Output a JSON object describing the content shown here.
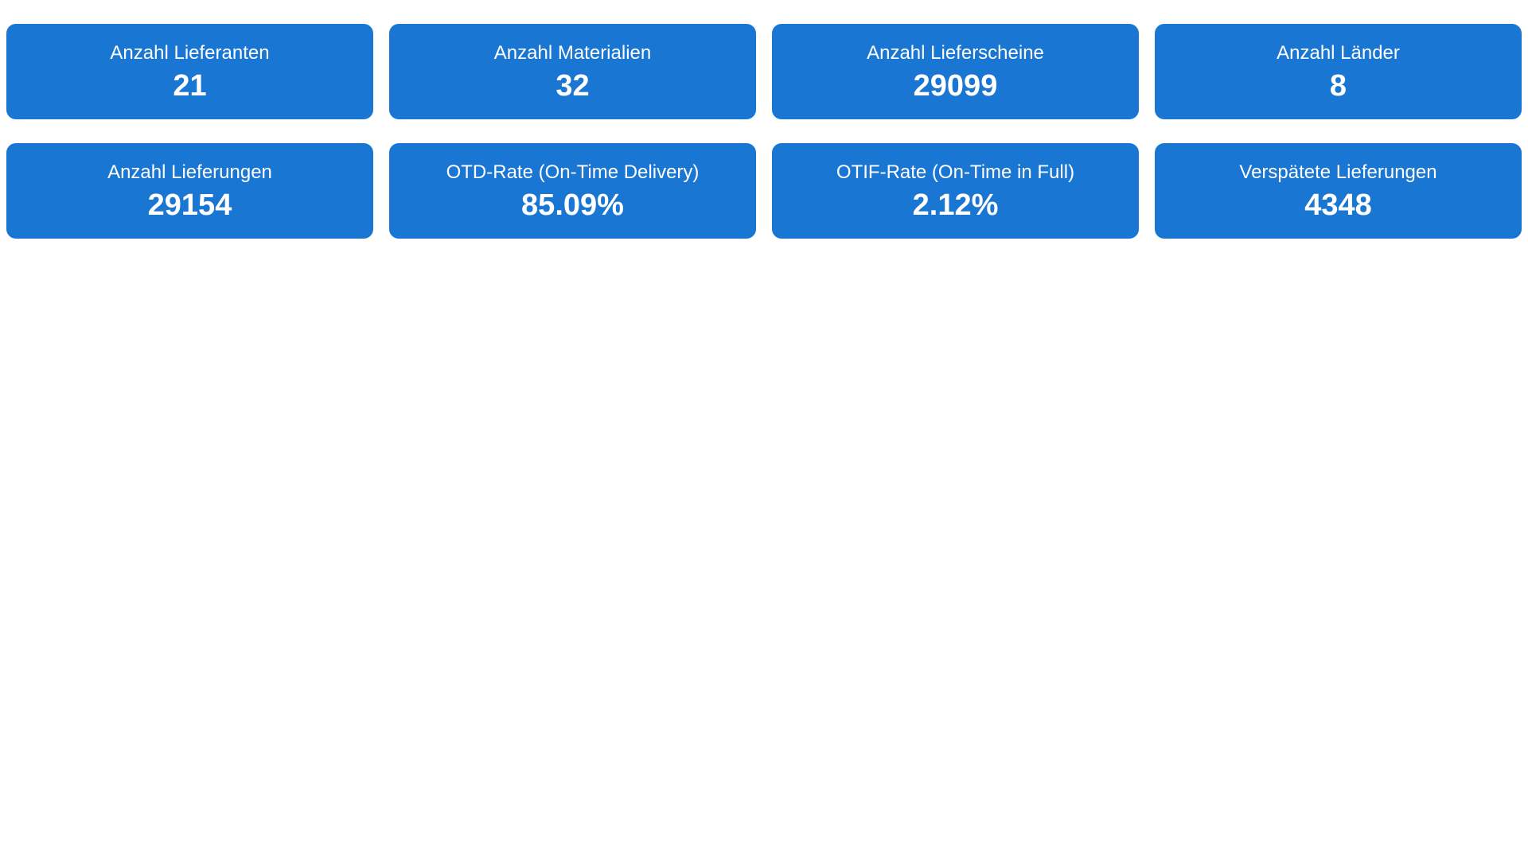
{
  "colors": {
    "card_background": "#1976d2",
    "card_text": "#ffffff",
    "page_background": "#ffffff"
  },
  "kpis": [
    {
      "label": "Anzahl Lieferanten",
      "value": "21"
    },
    {
      "label": "Anzahl Materialien",
      "value": "32"
    },
    {
      "label": "Anzahl Lieferscheine",
      "value": "29099"
    },
    {
      "label": "Anzahl Länder",
      "value": "8"
    },
    {
      "label": "Anzahl Lieferungen",
      "value": "29154"
    },
    {
      "label": "OTD-Rate (On-Time Delivery)",
      "value": "85.09%"
    },
    {
      "label": "OTIF-Rate (On-Time in Full)",
      "value": "2.12%"
    },
    {
      "label": "Verspätete Lieferungen",
      "value": "4348"
    }
  ]
}
